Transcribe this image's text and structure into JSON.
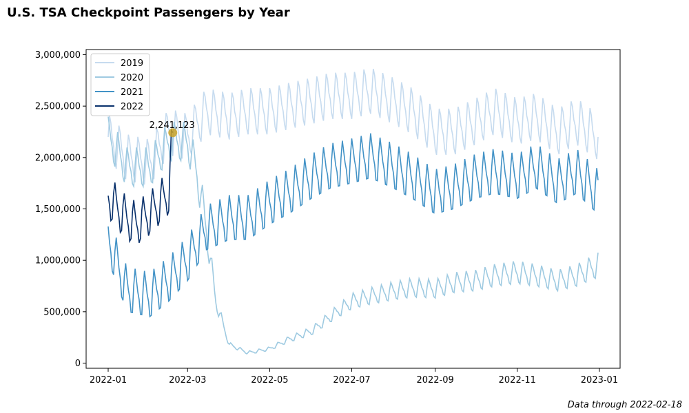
{
  "chart_data": {
    "type": "line",
    "title": "U.S. TSA Checkpoint Passengers by Year",
    "xlabel": "",
    "ylabel": "",
    "footnote": "Data through 2022-02-18",
    "x_axis": {
      "start": "2022-01-01",
      "end": "2022-12-31",
      "tick_labels": [
        "2022-01",
        "2022-03",
        "2022-05",
        "2022-07",
        "2022-09",
        "2022-11",
        "2023-01"
      ]
    },
    "ylim": [
      -50000,
      3050000
    ],
    "y_tick_labels": [
      "0",
      "500,000",
      "1,000,000",
      "1,500,000",
      "2,000,000",
      "2,500,000",
      "3,000,000"
    ],
    "grid": false,
    "legend_position": "top-left",
    "series": [
      {
        "name": "2019",
        "color": "#c6dbef",
        "points": [
          [
            "2022-01-01",
            2200000
          ],
          [
            "2022-01-15",
            2000000
          ],
          [
            "2022-02-01",
            1950000
          ],
          [
            "2022-02-15",
            2250000
          ],
          [
            "2022-03-01",
            2200000
          ],
          [
            "2022-03-15",
            2450000
          ],
          [
            "2022-04-01",
            2400000
          ],
          [
            "2022-04-15",
            2450000
          ],
          [
            "2022-05-01",
            2450000
          ],
          [
            "2022-05-15",
            2500000
          ],
          [
            "2022-06-01",
            2550000
          ],
          [
            "2022-06-15",
            2600000
          ],
          [
            "2022-07-01",
            2600000
          ],
          [
            "2022-07-15",
            2650000
          ],
          [
            "2022-08-01",
            2550000
          ],
          [
            "2022-08-15",
            2450000
          ],
          [
            "2022-09-01",
            2250000
          ],
          [
            "2022-09-15",
            2250000
          ],
          [
            "2022-10-01",
            2350000
          ],
          [
            "2022-10-15",
            2450000
          ],
          [
            "2022-11-01",
            2350000
          ],
          [
            "2022-11-15",
            2400000
          ],
          [
            "2022-12-01",
            2250000
          ],
          [
            "2022-12-15",
            2350000
          ],
          [
            "2022-12-31",
            2200000
          ]
        ]
      },
      {
        "name": "2020",
        "color": "#9ecae1",
        "points": [
          [
            "2022-01-01",
            2200000
          ],
          [
            "2022-01-15",
            1900000
          ],
          [
            "2022-02-01",
            1900000
          ],
          [
            "2022-02-15",
            2150000
          ],
          [
            "2022-03-01",
            2150000
          ],
          [
            "2022-03-08",
            1850000
          ],
          [
            "2022-03-15",
            1300000
          ],
          [
            "2022-03-22",
            600000
          ],
          [
            "2022-04-01",
            180000
          ],
          [
            "2022-04-15",
            100000
          ],
          [
            "2022-05-01",
            140000
          ],
          [
            "2022-05-15",
            230000
          ],
          [
            "2022-06-01",
            310000
          ],
          [
            "2022-06-15",
            450000
          ],
          [
            "2022-07-01",
            600000
          ],
          [
            "2022-07-15",
            650000
          ],
          [
            "2022-08-01",
            700000
          ],
          [
            "2022-08-15",
            730000
          ],
          [
            "2022-09-01",
            720000
          ],
          [
            "2022-09-15",
            780000
          ],
          [
            "2022-10-01",
            800000
          ],
          [
            "2022-10-15",
            850000
          ],
          [
            "2022-11-01",
            880000
          ],
          [
            "2022-11-15",
            850000
          ],
          [
            "2022-12-01",
            800000
          ],
          [
            "2022-12-15",
            850000
          ],
          [
            "2022-12-31",
            950000
          ]
        ]
      },
      {
        "name": "2021",
        "color": "#4292c6",
        "points": [
          [
            "2022-01-01",
            1200000
          ],
          [
            "2022-01-15",
            700000
          ],
          [
            "2022-02-01",
            650000
          ],
          [
            "2022-02-15",
            800000
          ],
          [
            "2022-03-01",
            1000000
          ],
          [
            "2022-03-15",
            1300000
          ],
          [
            "2022-04-01",
            1400000
          ],
          [
            "2022-04-15",
            1400000
          ],
          [
            "2022-05-01",
            1550000
          ],
          [
            "2022-05-15",
            1650000
          ],
          [
            "2022-06-01",
            1800000
          ],
          [
            "2022-06-15",
            1900000
          ],
          [
            "2022-07-01",
            1950000
          ],
          [
            "2022-07-15",
            2000000
          ],
          [
            "2022-08-01",
            1900000
          ],
          [
            "2022-08-15",
            1800000
          ],
          [
            "2022-09-01",
            1650000
          ],
          [
            "2022-09-15",
            1700000
          ],
          [
            "2022-10-01",
            1800000
          ],
          [
            "2022-10-15",
            1850000
          ],
          [
            "2022-11-01",
            1800000
          ],
          [
            "2022-11-15",
            1900000
          ],
          [
            "2022-12-01",
            1750000
          ],
          [
            "2022-12-15",
            1850000
          ],
          [
            "2022-12-31",
            1650000
          ]
        ]
      },
      {
        "name": "2022",
        "color": "#08306b",
        "points": [
          [
            "2022-01-01",
            1620000
          ],
          [
            "2022-01-08",
            1500000
          ],
          [
            "2022-01-15",
            1400000
          ],
          [
            "2022-01-22",
            1350000
          ],
          [
            "2022-02-01",
            1450000
          ],
          [
            "2022-02-08",
            1550000
          ],
          [
            "2022-02-15",
            1650000
          ],
          [
            "2022-02-18",
            2241123
          ]
        ]
      }
    ],
    "annotation": {
      "label": "2,241,123",
      "x": "2022-02-18",
      "y": 2241123,
      "marker_color": "#c9a227"
    }
  }
}
